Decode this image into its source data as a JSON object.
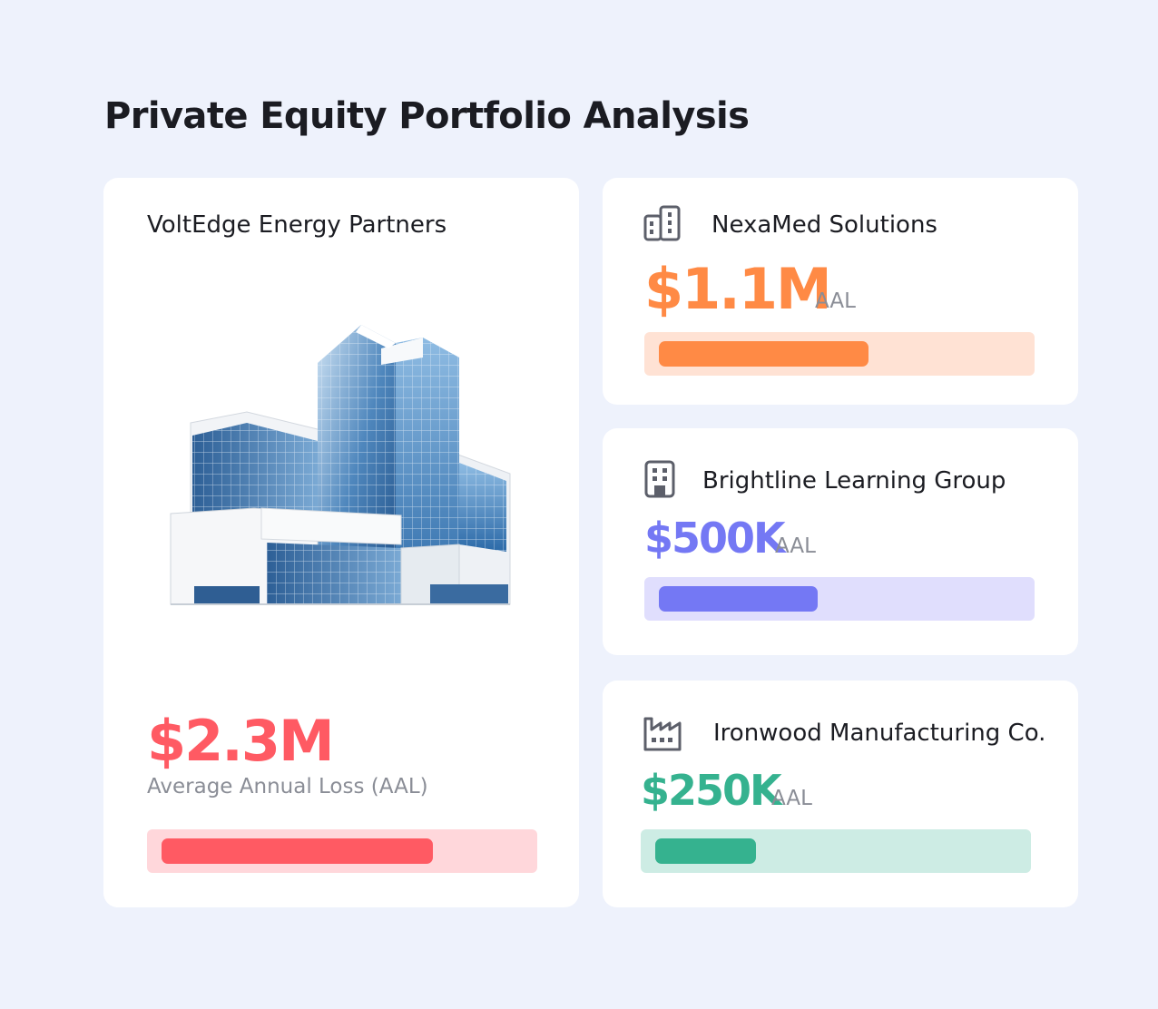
{
  "page": {
    "title": "Private Equity Portfolio Analysis"
  },
  "featured": {
    "name": "VoltEdge Energy Partners",
    "value": "$2.3M",
    "subtitle": "Average Annual Loss (AAL)",
    "bar_fraction": 0.75,
    "color": "#ff5a63",
    "track_color": "#ffd7db",
    "image": "office-building-image"
  },
  "companies": [
    {
      "name": "NexaMed Solutions",
      "value": "$1.1M",
      "unit": "AAL",
      "bar_fraction": 0.58,
      "color": "#ff8a45",
      "track_color": "#ffe2d4",
      "icon": "buildings-icon"
    },
    {
      "name": "Brightline Learning Group",
      "value": "$500K",
      "unit": "AAL",
      "bar_fraction": 0.44,
      "color": "#7478f4",
      "track_color": "#e0defd",
      "icon": "office-building-icon"
    },
    {
      "name": "Ironwood Manufacturing Co.",
      "value": "$250K",
      "unit": "AAL",
      "bar_fraction": 0.28,
      "color": "#35b28f",
      "track_color": "#cdece4",
      "icon": "factory-icon"
    }
  ]
}
